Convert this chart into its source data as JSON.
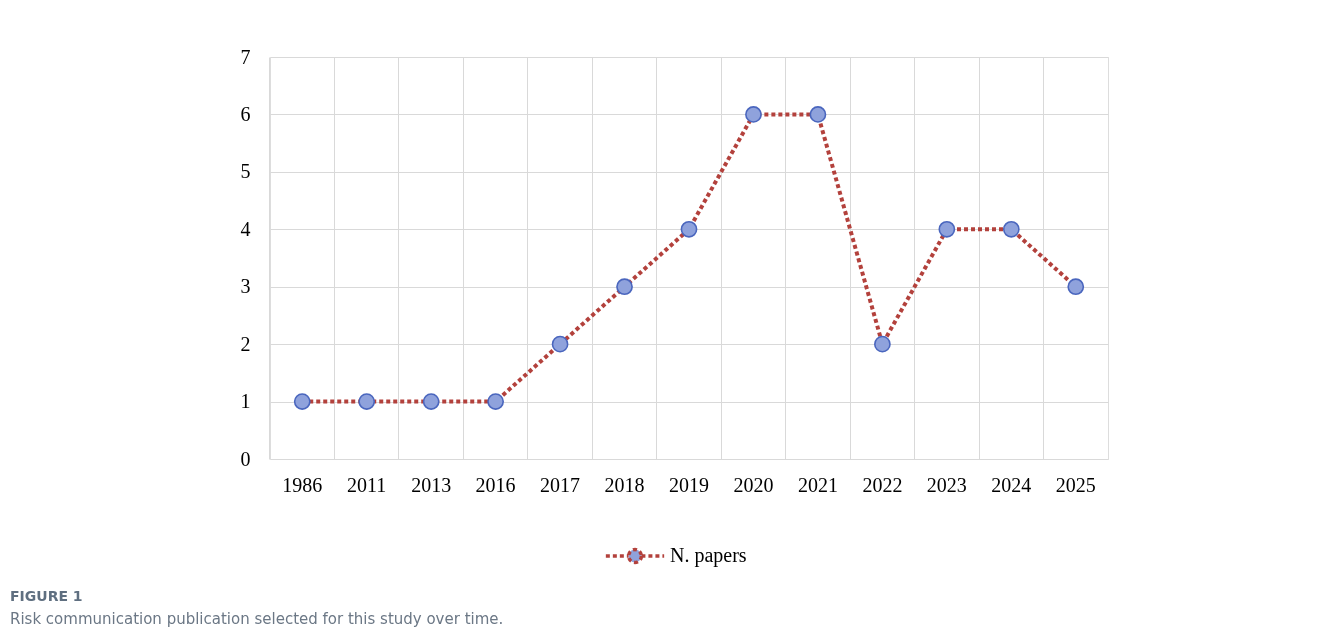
{
  "chart_data": {
    "type": "line",
    "categories": [
      "1986",
      "2011",
      "2013",
      "2016",
      "2017",
      "2018",
      "2019",
      "2020",
      "2021",
      "2022",
      "2023",
      "2024",
      "2025"
    ],
    "series": [
      {
        "name": "N. papers",
        "color": "#b3413c",
        "colors": [
          "#8fa2dc",
          "#8fa2dc",
          "#8fa2dc",
          "#8fa2dc",
          "#8fa2dc",
          "#8fa2dc",
          "#8fa2dc",
          "#8fa2dc",
          "#8fa2dc",
          "#8fa2dc",
          "#8fa2dc",
          "#8fa2dc",
          "#8fa2dc"
        ],
        "values": [
          1,
          1,
          1,
          1,
          2,
          3,
          4,
          6,
          6,
          2,
          4,
          4,
          3
        ]
      }
    ],
    "ylim": [
      0,
      7
    ],
    "yticks": [
      0,
      1,
      2,
      3,
      4,
      5,
      6,
      7
    ],
    "grid": true,
    "legend": "bottom",
    "marker": "circle",
    "line_style": "dotted",
    "annotations": [
      "FIGURE 1",
      "Risk communication publication selected for this study over time."
    ]
  }
}
